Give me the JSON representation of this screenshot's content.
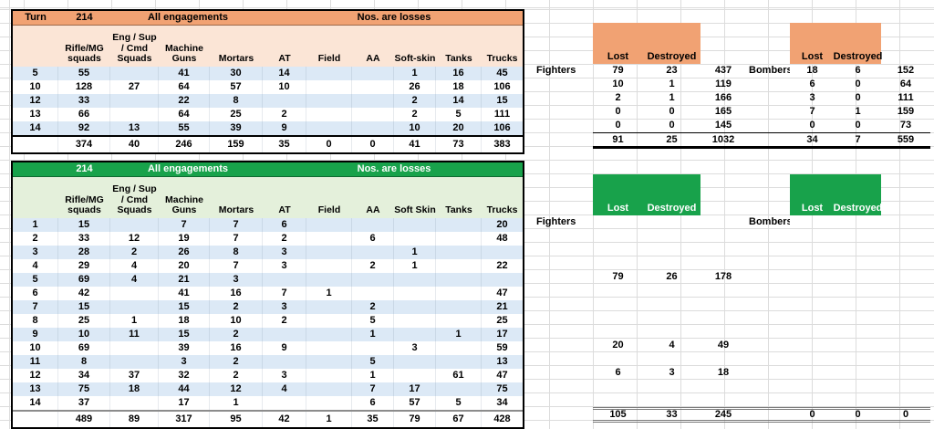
{
  "colors": {
    "orange_header": "#F1A273",
    "orange_light": "#FBE5D6",
    "green_header": "#18A24B",
    "green_light": "#E4F0DB",
    "row_stripe": "#DCE9F6"
  },
  "table_top": {
    "turn_label": "Turn",
    "turn_value": "214",
    "title": "All engagements",
    "subtitle": "Nos. are losses",
    "columns": [
      "Rifle/MG\nsquads",
      "Eng / Sup\n/ Cmd\nSquads",
      "Machine\nGuns",
      "Mortars",
      "AT",
      "Field",
      "AA",
      "Soft-skin",
      "Tanks",
      "Trucks"
    ],
    "rows": [
      {
        "label": "5",
        "values": [
          "55",
          "",
          "41",
          "30",
          "14",
          "",
          "",
          "1",
          "16",
          "45"
        ]
      },
      {
        "label": "10",
        "values": [
          "128",
          "27",
          "64",
          "57",
          "10",
          "",
          "",
          "26",
          "18",
          "106"
        ]
      },
      {
        "label": "12",
        "values": [
          "33",
          "",
          "22",
          "8",
          "",
          "",
          "",
          "2",
          "14",
          "15"
        ]
      },
      {
        "label": "13",
        "values": [
          "66",
          "",
          "64",
          "25",
          "2",
          "",
          "",
          "2",
          "5",
          "111"
        ]
      },
      {
        "label": "14",
        "values": [
          "92",
          "13",
          "55",
          "39",
          "9",
          "",
          "",
          "10",
          "20",
          "106"
        ]
      }
    ],
    "totals": [
      "374",
      "40",
      "246",
      "159",
      "35",
      "0",
      "0",
      "41",
      "73",
      "383"
    ]
  },
  "table_bottom": {
    "turn_label": "",
    "turn_value": "214",
    "title": "All engagements",
    "subtitle": "Nos. are losses",
    "columns": [
      "Rifle/MG\nsquads",
      "Eng / Sup\n/ Cmd\nSquads",
      "Machine\nGuns",
      "Mortars",
      "AT",
      "Field",
      "AA",
      "Soft Skin",
      "Tanks",
      "Trucks"
    ],
    "rows": [
      {
        "label": "1",
        "values": [
          "15",
          "",
          "7",
          "7",
          "6",
          "",
          "",
          "",
          "",
          "20"
        ]
      },
      {
        "label": "2",
        "values": [
          "33",
          "12",
          "19",
          "7",
          "2",
          "",
          "6",
          "",
          "",
          "48"
        ]
      },
      {
        "label": "3",
        "values": [
          "28",
          "2",
          "26",
          "8",
          "3",
          "",
          "",
          "1",
          "",
          ""
        ]
      },
      {
        "label": "4",
        "values": [
          "29",
          "4",
          "20",
          "7",
          "3",
          "",
          "2",
          "1",
          "",
          "22"
        ]
      },
      {
        "label": "5",
        "values": [
          "69",
          "4",
          "21",
          "3",
          "",
          "",
          "",
          "",
          "",
          ""
        ]
      },
      {
        "label": "6",
        "values": [
          "42",
          "",
          "41",
          "16",
          "7",
          "1",
          "",
          "",
          "",
          "47"
        ]
      },
      {
        "label": "7",
        "values": [
          "15",
          "",
          "15",
          "2",
          "3",
          "",
          "2",
          "",
          "",
          "21"
        ]
      },
      {
        "label": "8",
        "values": [
          "25",
          "1",
          "18",
          "10",
          "2",
          "",
          "5",
          "",
          "",
          "25"
        ]
      },
      {
        "label": "9",
        "values": [
          "10",
          "11",
          "15",
          "2",
          "",
          "",
          "1",
          "",
          "1",
          "17"
        ]
      },
      {
        "label": "10",
        "values": [
          "69",
          "",
          "39",
          "16",
          "9",
          "",
          "",
          "3",
          "",
          "59"
        ]
      },
      {
        "label": "11",
        "values": [
          "8",
          "",
          "3",
          "2",
          "",
          "",
          "5",
          "",
          "",
          "13"
        ]
      },
      {
        "label": "12",
        "values": [
          "34",
          "37",
          "32",
          "2",
          "3",
          "",
          "1",
          "",
          "61",
          "47"
        ]
      },
      {
        "label": "13",
        "values": [
          "75",
          "18",
          "44",
          "12",
          "4",
          "",
          "7",
          "17",
          "",
          "75"
        ]
      },
      {
        "label": "14",
        "values": [
          "37",
          "",
          "17",
          "1",
          "",
          "",
          "6",
          "57",
          "5",
          "34"
        ]
      }
    ],
    "totals": [
      "489",
      "89",
      "317",
      "95",
      "42",
      "1",
      "35",
      "79",
      "67",
      "428"
    ]
  },
  "air_top": {
    "fighters_label": "Fighters",
    "bombers_label": "Bombers",
    "lost_label": "Lost",
    "destroyed_label": "Destroyed",
    "rows": [
      {
        "fighters": [
          "79",
          "23",
          "437"
        ],
        "bombers": [
          "18",
          "6",
          "152"
        ]
      },
      {
        "fighters": [
          "10",
          "1",
          "119"
        ],
        "bombers": [
          "6",
          "0",
          "64"
        ]
      },
      {
        "fighters": [
          "2",
          "1",
          "166"
        ],
        "bombers": [
          "3",
          "0",
          "111"
        ]
      },
      {
        "fighters": [
          "0",
          "0",
          "165"
        ],
        "bombers": [
          "7",
          "1",
          "159"
        ]
      },
      {
        "fighters": [
          "0",
          "0",
          "145"
        ],
        "bombers": [
          "0",
          "0",
          "73"
        ]
      }
    ],
    "totals": {
      "fighters": [
        "91",
        "25",
        "1032"
      ],
      "bombers": [
        "34",
        "7",
        "559"
      ]
    }
  },
  "air_bottom": {
    "fighters_label": "Fighters",
    "bombers_label": "Bombers",
    "lost_label": "Lost",
    "destroyed_label": "Destroyed",
    "row_count": 14,
    "sparse_fighter_rows": {
      "5": [
        "79",
        "26",
        "178"
      ],
      "10": [
        "20",
        "4",
        "49"
      ],
      "12": [
        "6",
        "3",
        "18"
      ]
    },
    "totals": {
      "fighters": [
        "105",
        "33",
        "245"
      ],
      "bombers": [
        "0",
        "0",
        "0"
      ]
    }
  }
}
